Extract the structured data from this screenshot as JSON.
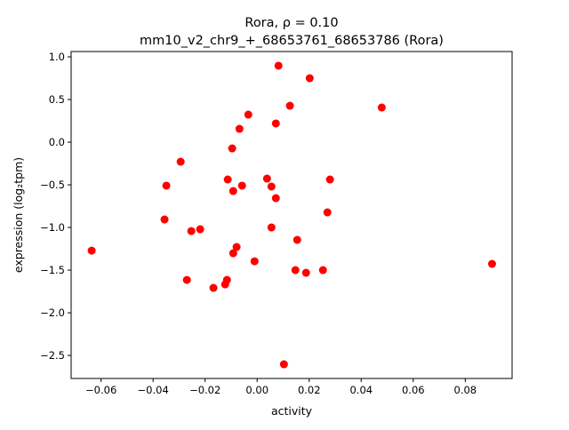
{
  "chart_data": {
    "type": "scatter",
    "title_line1": "Rora, ρ = 0.10",
    "title_line2": "mm10_v2_chr9_+_68653761_68653786 (Rora)",
    "xlabel": "activity",
    "ylabel": "expression (log₂tpm)",
    "xlim": [
      -0.0715,
      0.098
    ],
    "ylim": [
      -2.77,
      1.0625
    ],
    "xticks": [
      -0.06,
      -0.04,
      -0.02,
      0.0,
      0.02,
      0.04,
      0.06,
      0.08
    ],
    "xtick_labels": [
      "−0.06",
      "−0.04",
      "−0.02",
      "0.00",
      "0.02",
      "0.04",
      "0.06",
      "0.08"
    ],
    "yticks": [
      1.0,
      0.5,
      0.0,
      -0.5,
      -1.0,
      -1.5,
      -2.0,
      -2.5
    ],
    "ytick_labels": [
      "1.0",
      "0.5",
      "0.0",
      "−0.5",
      "−1.0",
      "−1.5",
      "−2.0",
      "−2.5"
    ],
    "grid": false,
    "marker_color": "#ff0000",
    "points": [
      [
        0.0082,
        0.896
      ],
      [
        0.0202,
        0.75
      ],
      [
        0.0126,
        0.427
      ],
      [
        0.0479,
        0.406
      ],
      [
        -0.0034,
        0.323
      ],
      [
        0.0072,
        0.219
      ],
      [
        -0.0068,
        0.156
      ],
      [
        -0.0096,
        -0.073
      ],
      [
        -0.0294,
        -0.229
      ],
      [
        -0.0349,
        -0.51
      ],
      [
        -0.0113,
        -0.4375
      ],
      [
        -0.0092,
        -0.573
      ],
      [
        -0.0058,
        -0.51
      ],
      [
        0.0038,
        -0.427
      ],
      [
        0.0055,
        -0.52
      ],
      [
        0.0072,
        -0.656
      ],
      [
        0.028,
        -0.4375
      ],
      [
        0.027,
        -0.823
      ],
      [
        -0.0356,
        -0.906
      ],
      [
        -0.0253,
        -1.042
      ],
      [
        -0.0219,
        -1.021
      ],
      [
        0.0055,
        -1.0
      ],
      [
        -0.0079,
        -1.229
      ],
      [
        -0.0092,
        -1.302
      ],
      [
        0.0154,
        -1.146
      ],
      [
        -0.0636,
        -1.271
      ],
      [
        -0.001,
        -1.396
      ],
      [
        0.0903,
        -1.427
      ],
      [
        0.0147,
        -1.5
      ],
      [
        0.0188,
        -1.531
      ],
      [
        0.0253,
        -1.5
      ],
      [
        -0.027,
        -1.615
      ],
      [
        -0.0116,
        -1.615
      ],
      [
        -0.0123,
        -1.667
      ],
      [
        -0.0168,
        -1.708
      ],
      [
        0.0103,
        -2.604
      ]
    ]
  }
}
